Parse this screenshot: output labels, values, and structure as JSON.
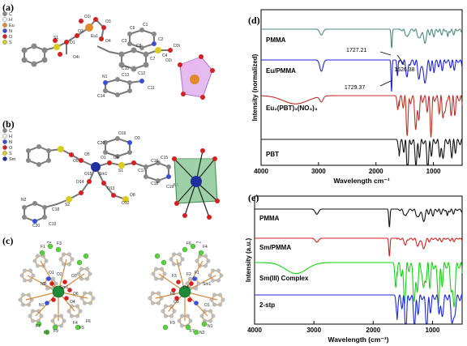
{
  "panel_labels": {
    "a": "(a)",
    "b": "(b)",
    "c": "(c)",
    "d": "(d)",
    "e": "(e)"
  },
  "legend_a": [
    "C",
    "H",
    "Eu",
    "N",
    "O",
    "S"
  ],
  "legend_b": [
    "C",
    "H",
    "N",
    "O",
    "S",
    "Sm"
  ],
  "legend_colors": {
    "C": "#888888",
    "H": "#f0f0f0",
    "Eu": "#e08a2c",
    "N": "#3a4fd6",
    "O": "#d42020",
    "S": "#d8cc20",
    "Sm": "#1f2f9e"
  },
  "atom_labels_a": [
    "O1",
    "O2",
    "Eu1",
    "O3",
    "O4",
    "S1",
    "N1",
    "C13",
    "C12",
    "C14",
    "C11",
    "C10",
    "C8",
    "C7",
    "C6",
    "C1",
    "C2",
    "C3",
    "C4",
    "O1i",
    "O3i",
    "O2i",
    "O4i"
  ],
  "atom_labels_b": [
    "N2",
    "C20",
    "C19",
    "C18",
    "O14",
    "O15",
    "Sm1",
    "O9",
    "O5",
    "O1",
    "O4",
    "O13",
    "S2",
    "S1",
    "O12",
    "O8",
    "N1",
    "C15",
    "C16",
    "C17",
    "C18",
    "C19",
    "C20",
    "O16",
    "O3"
  ],
  "atom_labels_c1": [
    "F1",
    "F2",
    "F3",
    "O1",
    "O2",
    "O3",
    "O4",
    "Sm1",
    "N1",
    "N2",
    "F7",
    "F8",
    "F9",
    "O6",
    "F4",
    "F5",
    "F6"
  ],
  "atom_labels_c2": [
    "F4",
    "F5",
    "F6",
    "F1",
    "F2",
    "F3",
    "O3",
    "O4",
    "O1",
    "Sm1",
    "N1",
    "N2",
    "F7",
    "F8",
    "F9"
  ],
  "chart_data": [
    {
      "type": "line",
      "title": "",
      "xlabel": "Wavelength cm⁻¹",
      "ylabel": "Intensity (normalized)",
      "xlim": [
        4000,
        500
      ],
      "x_ticks": [
        "4000",
        "3000",
        "2000",
        "1000"
      ],
      "series": [
        {
          "name": "PMMA",
          "color": "#4a8a78"
        },
        {
          "name": "Eu/PMMA",
          "color": "#2323d8"
        },
        {
          "name": "Eu₂(PBT)₃(NO₃)₃",
          "color": "#c0302a"
        },
        {
          "name": "PBT",
          "color": "#111111"
        }
      ],
      "annotations": [
        "1727.21",
        "1729.37",
        "1626.38"
      ]
    },
    {
      "type": "line",
      "title": "",
      "xlabel": "Wavelength (cm⁻¹)",
      "ylabel": "Intensity (a.u.)",
      "xlim": [
        4000,
        500
      ],
      "x_ticks": [
        "4000",
        "3000",
        "2000",
        "1000"
      ],
      "series": [
        {
          "name": "PMMA",
          "color": "#111111"
        },
        {
          "name": "Sm/PMMA",
          "color": "#d42020"
        },
        {
          "name": "Sm(III) Complex",
          "color": "#18d018"
        },
        {
          "name": "2-stp",
          "color": "#1a28d8"
        }
      ]
    }
  ]
}
